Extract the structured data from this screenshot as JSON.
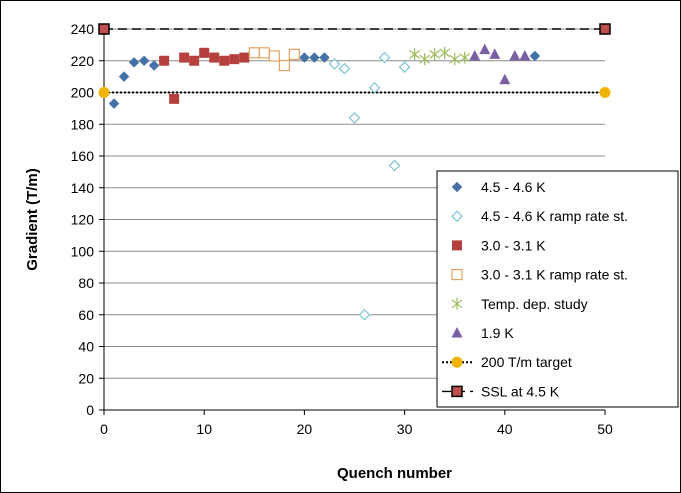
{
  "chart_data": {
    "type": "scatter",
    "title": "",
    "xlabel": "Quench number",
    "ylabel": "Gradient (T/m)",
    "xlim": [
      0,
      50
    ],
    "ylim": [
      0,
      240
    ],
    "x_ticks": [
      0,
      10,
      20,
      30,
      40,
      50
    ],
    "y_ticks": [
      0,
      20,
      40,
      60,
      80,
      100,
      120,
      140,
      160,
      180,
      200,
      220,
      240
    ],
    "grid": "horizontal",
    "legend_position": "right",
    "series": [
      {
        "name": "4.5 - 4.6 K",
        "marker": "filled-diamond",
        "color": "#4472a8",
        "points": [
          [
            1,
            193
          ],
          [
            2,
            210
          ],
          [
            3,
            219
          ],
          [
            4,
            220
          ],
          [
            5,
            217
          ],
          [
            20,
            222
          ],
          [
            21,
            222
          ],
          [
            22,
            222
          ],
          [
            43,
            223
          ]
        ]
      },
      {
        "name": "4.5 - 4.6 K ramp rate st.",
        "marker": "open-diamond",
        "color": "#7cc4d4",
        "points": [
          [
            23,
            218
          ],
          [
            24,
            215
          ],
          [
            25,
            184
          ],
          [
            26,
            60
          ],
          [
            27,
            203
          ],
          [
            28,
            222
          ],
          [
            29,
            154
          ],
          [
            30,
            216
          ]
        ]
      },
      {
        "name": "3.0 - 3.1 K",
        "marker": "filled-square",
        "color": "#b5403e",
        "points": [
          [
            6,
            220
          ],
          [
            7,
            196
          ],
          [
            8,
            222
          ],
          [
            9,
            220
          ],
          [
            10,
            225
          ],
          [
            11,
            222
          ],
          [
            12,
            220
          ],
          [
            13,
            221
          ],
          [
            14,
            222
          ]
        ]
      },
      {
        "name": "3.0 - 3.1 K ramp rate st.",
        "marker": "open-square",
        "color": "#e8a060",
        "points": [
          [
            15,
            225
          ],
          [
            16,
            225
          ],
          [
            17,
            223
          ],
          [
            18,
            217
          ],
          [
            19,
            224
          ]
        ]
      },
      {
        "name": "Temp. dep. study",
        "marker": "asterisk",
        "color": "#9bbb59",
        "points": [
          [
            31,
            224
          ],
          [
            32,
            221
          ],
          [
            33,
            224
          ],
          [
            34,
            225
          ],
          [
            35,
            221
          ],
          [
            36,
            222
          ]
        ]
      },
      {
        "name": "1.9 K",
        "marker": "filled-triangle",
        "color": "#7a5fa3",
        "points": [
          [
            37,
            223
          ],
          [
            38,
            227
          ],
          [
            39,
            224
          ],
          [
            40,
            208
          ],
          [
            41,
            223
          ],
          [
            42,
            223
          ]
        ]
      },
      {
        "name": "200 T/m target",
        "marker": "circle",
        "line": "dotted",
        "color": "#f0b400",
        "points": [
          [
            0,
            200
          ],
          [
            50,
            200
          ]
        ]
      },
      {
        "name": "SSL at 4.5 K",
        "marker": "bordered-square",
        "line": "dashed",
        "color": "#000000",
        "fill": "#c0504d",
        "points": [
          [
            0,
            240
          ],
          [
            50,
            240
          ]
        ]
      }
    ]
  }
}
